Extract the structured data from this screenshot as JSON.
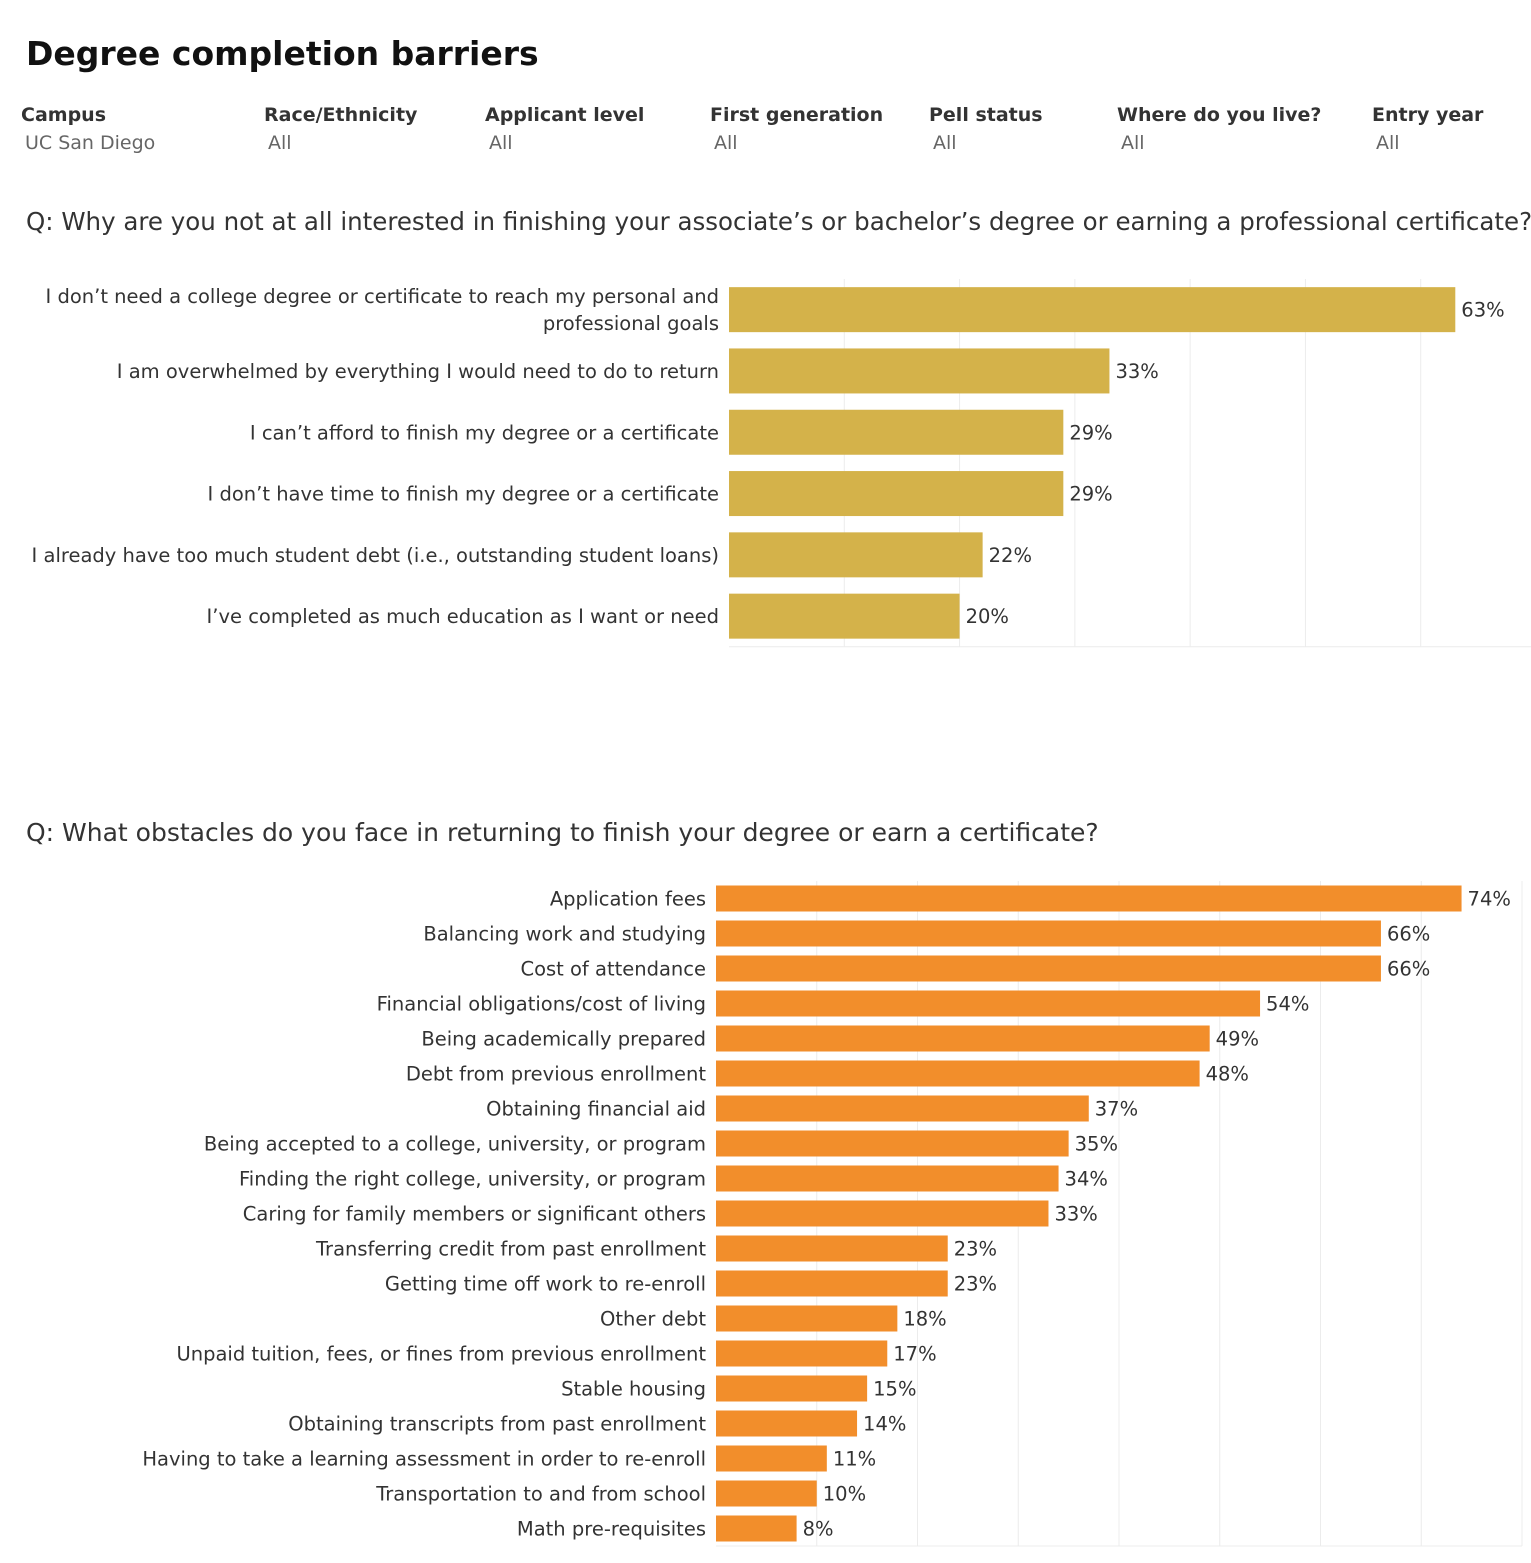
{
  "page": {
    "title": "Degree completion barriers"
  },
  "filters": [
    {
      "label": "Campus",
      "value": "UC San Diego"
    },
    {
      "label": "Race/Ethnicity",
      "value": "All"
    },
    {
      "label": "Applicant level",
      "value": "All"
    },
    {
      "label": "First generation",
      "value": "All"
    },
    {
      "label": "Pell status",
      "value": "All"
    },
    {
      "label": "Where do you live?",
      "value": "All"
    },
    {
      "label": "Entry year",
      "value": "All"
    }
  ],
  "colors": {
    "chart1_bar": "#d4b24a",
    "chart2_bar": "#f28e2b",
    "grid": "#ececec",
    "text": "#333333"
  },
  "chart_data": [
    {
      "type": "bar",
      "orientation": "horizontal",
      "title": "Q: Why are you not at all interested in finishing your associate’s or bachelor’s degree or earning a professional certificate?",
      "categories": [
        [
          "I don’t need a college degree or certificate to reach my personal and",
          "professional goals"
        ],
        [
          "I am overwhelmed by everything I would need to do to return"
        ],
        [
          "I can’t afford to finish my degree or a certificate"
        ],
        [
          "I don’t have time to finish my degree or a certificate"
        ],
        [
          "I already have too much student debt (i.e., outstanding student loans)"
        ],
        [
          "I’ve completed as much education as I want or need"
        ]
      ],
      "values": [
        63,
        33,
        29,
        29,
        22,
        20
      ],
      "value_labels": [
        "63%",
        "33%",
        "29%",
        "29%",
        "22%",
        "20%"
      ],
      "unit": "%",
      "xlim": [
        0,
        70
      ],
      "grid": true
    },
    {
      "type": "bar",
      "orientation": "horizontal",
      "title": "Q: What obstacles do you face in returning to finish your degree or earn a certificate?",
      "categories": [
        [
          "Application fees"
        ],
        [
          "Balancing work and studying"
        ],
        [
          "Cost of attendance"
        ],
        [
          "Financial obligations/cost of living"
        ],
        [
          "Being academically prepared"
        ],
        [
          "Debt from previous enrollment"
        ],
        [
          "Obtaining financial aid"
        ],
        [
          "Being accepted to a college, university, or program"
        ],
        [
          "Finding the right college, university, or program"
        ],
        [
          "Caring for family members or significant others"
        ],
        [
          "Transferring credit from past enrollment"
        ],
        [
          "Getting time off work to re-enroll"
        ],
        [
          "Other debt"
        ],
        [
          "Unpaid tuition, fees, or fines from previous enrollment"
        ],
        [
          "Stable housing"
        ],
        [
          "Obtaining transcripts from past enrollment"
        ],
        [
          "Having to take a learning assessment in order to re-enroll"
        ],
        [
          "Transportation to and from school"
        ],
        [
          "Math pre-requisites"
        ]
      ],
      "values": [
        74,
        66,
        66,
        54,
        49,
        48,
        37,
        35,
        34,
        33,
        23,
        23,
        18,
        17,
        15,
        14,
        11,
        10,
        8
      ],
      "value_labels": [
        "74%",
        "66%",
        "66%",
        "54%",
        "49%",
        "48%",
        "37%",
        "35%",
        "34%",
        "33%",
        "23%",
        "23%",
        "18%",
        "17%",
        "15%",
        "14%",
        "11%",
        "10%",
        "8%"
      ],
      "unit": "%",
      "xlim": [
        0,
        80
      ],
      "grid": true
    }
  ]
}
